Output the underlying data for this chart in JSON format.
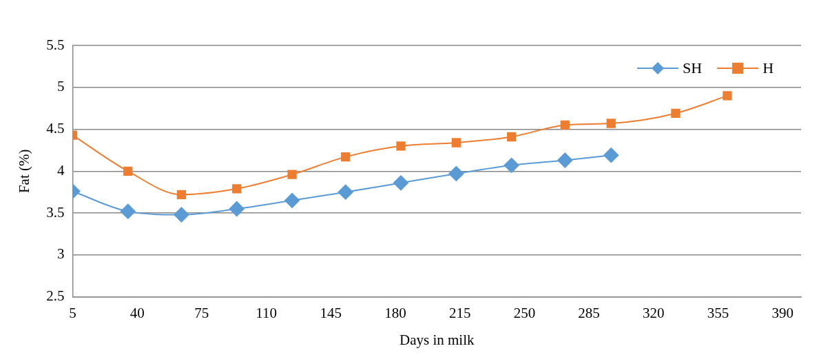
{
  "chart_data": {
    "type": "line",
    "xlabel": "Days in milk",
    "ylabel": "Fat (%)",
    "xlim": [
      5,
      400
    ],
    "xticks": [
      5,
      40,
      75,
      110,
      145,
      180,
      215,
      250,
      285,
      320,
      355,
      390
    ],
    "ylim": [
      2.5,
      5.5
    ],
    "yticks": [
      2.5,
      3,
      3.5,
      4,
      4.5,
      5,
      5.5
    ],
    "grid": "y",
    "legend": "top right",
    "series": [
      {
        "name": "SH",
        "color": "#5b9bd5",
        "marker": "diamond",
        "x": [
          5,
          35,
          64,
          94,
          124,
          153,
          183,
          213,
          243,
          272,
          297
        ],
        "values": [
          3.76,
          3.52,
          3.48,
          3.55,
          3.65,
          3.75,
          3.86,
          3.97,
          4.07,
          4.13,
          4.19
        ]
      },
      {
        "name": "H",
        "color": "#ed7d31",
        "marker": "square",
        "x": [
          5,
          35,
          64,
          94,
          124,
          153,
          183,
          213,
          243,
          272,
          297,
          332,
          360
        ],
        "values": [
          4.43,
          4.0,
          3.72,
          3.79,
          3.96,
          4.17,
          4.3,
          4.34,
          4.41,
          4.55,
          4.57,
          4.69,
          4.9
        ]
      }
    ]
  }
}
